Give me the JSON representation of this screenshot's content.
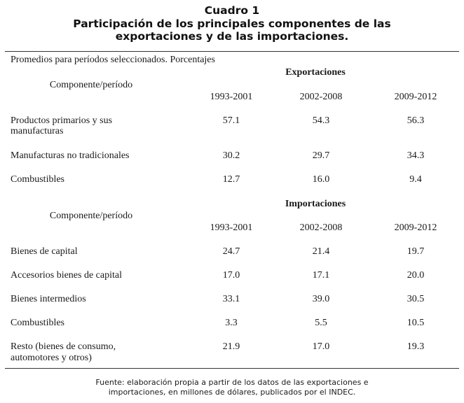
{
  "title": {
    "label": "Cuadro 1",
    "line1": "Participación de los principales componentes de las",
    "line2": "exportaciones y de las importaciones."
  },
  "table": {
    "caption": "Promedios para períodos seleccionados. Porcentajes",
    "exportaciones": {
      "section_label": "Exportaciones",
      "row_header": "Componente/período",
      "periods": [
        "1993-2001",
        "2002-2008",
        "2009-2012"
      ],
      "rows": [
        {
          "label_line1": "Productos primarios y sus",
          "label_line2": "manufacturas",
          "values": [
            "57.1",
            "54.3",
            "56.3"
          ]
        },
        {
          "label_line1": "Manufacturas no tradicionales",
          "values": [
            "30.2",
            "29.7",
            "34.3"
          ]
        },
        {
          "label_line1": "Combustibles",
          "values": [
            "12.7",
            "16.0",
            "9.4"
          ]
        }
      ]
    },
    "importaciones": {
      "section_label": "Importaciones",
      "row_header": "Componente/período",
      "periods": [
        "1993-2001",
        "2002-2008",
        "2009-2012"
      ],
      "rows": [
        {
          "label_line1": "Bienes de capital",
          "values": [
            "24.7",
            "21.4",
            "19.7"
          ]
        },
        {
          "label_line1": "Accesorios bienes de capital",
          "values": [
            "17.0",
            "17.1",
            "20.0"
          ]
        },
        {
          "label_line1": "Bienes intermedios",
          "values": [
            "33.1",
            "39.0",
            "30.5"
          ]
        },
        {
          "label_line1": "Combustibles",
          "values": [
            "3.3",
            "5.5",
            "10.5"
          ]
        },
        {
          "label_line1": "Resto (bienes de consumo,",
          "label_line2": "automotores y otros)",
          "values": [
            "21.9",
            "17.0",
            "19.3"
          ]
        }
      ]
    }
  },
  "footnote": {
    "line1": "Fuente: elaboración propia a partir de los datos de las exportaciones e",
    "line2": "importaciones, en millones de dólares, publicados por el INDEC."
  }
}
